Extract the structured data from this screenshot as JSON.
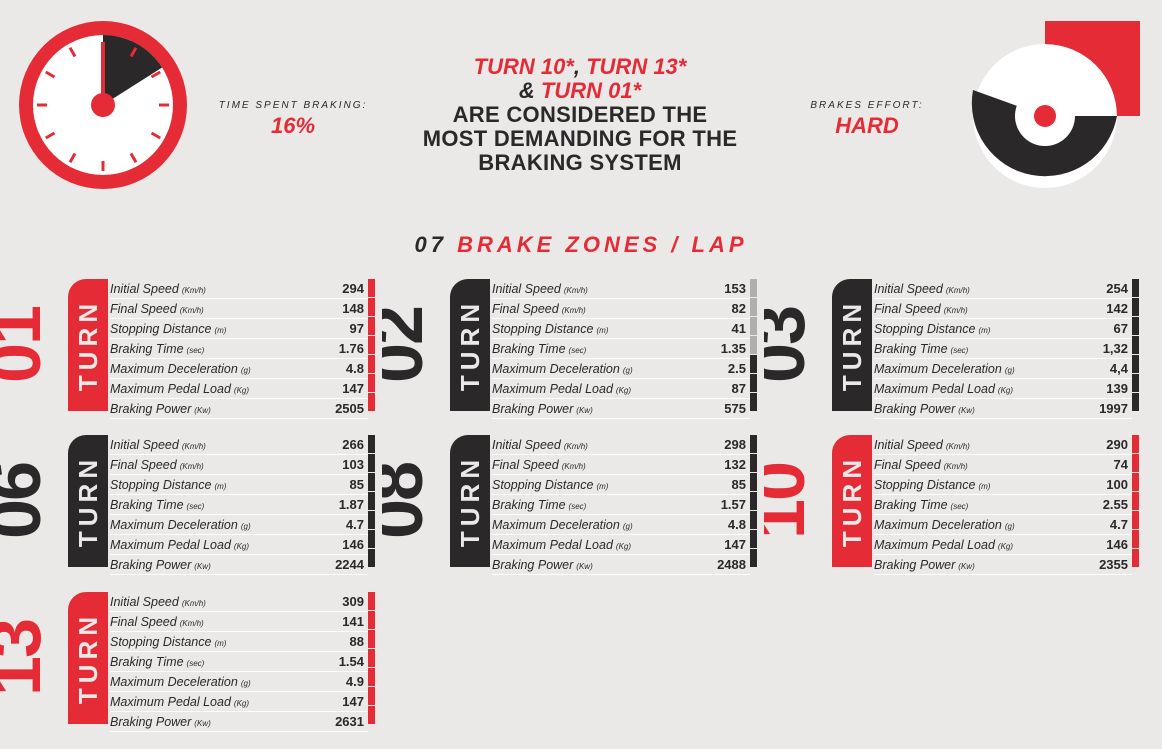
{
  "header": {
    "headline_parts": [
      "TURN 10*",
      ", ",
      "TURN 13*",
      "& ",
      "TURN 01*"
    ],
    "headline_rest": [
      "ARE CONSIDERED THE",
      "MOST DEMANDING FOR THE",
      "BRAKING SYSTEM"
    ]
  },
  "time_braking": {
    "label": "TIME SPENT BRAKING:",
    "value": "16%",
    "fraction": 0.16
  },
  "brakes_effort": {
    "label": "BRAKES EFFORT:",
    "value": "HARD"
  },
  "zones": {
    "count": "07",
    "label": "BRAKE ZONES / LAP"
  },
  "row_labels": [
    {
      "name": "Initial Speed",
      "unit": "(Km/h)"
    },
    {
      "name": "Final Speed",
      "unit": "(Km/h)"
    },
    {
      "name": "Stopping Distance",
      "unit": "(m)"
    },
    {
      "name": "Braking Time",
      "unit": "(sec)"
    },
    {
      "name": "Maximum Deceleration",
      "unit": "(g)"
    },
    {
      "name": "Maximum Pedal Load",
      "unit": "(Kg)"
    },
    {
      "name": "Braking Power",
      "unit": "(Kw)"
    }
  ],
  "turn_word": "TURN",
  "turns": [
    {
      "number": "01",
      "color": "#e52b35",
      "values": [
        "294",
        "148",
        "97",
        "1.76",
        "4.8",
        "147",
        "2505"
      ]
    },
    {
      "number": "02",
      "color": "#2b282a",
      "values": [
        "153",
        "82",
        "41",
        "1.35",
        "2.5",
        "87",
        "575"
      ]
    },
    {
      "number": "03",
      "color": "#2b282a",
      "values": [
        "254",
        "142",
        "67",
        "1,32",
        "4,4",
        "139",
        "1997"
      ]
    },
    {
      "number": "06",
      "color": "#2b282a",
      "values": [
        "266",
        "103",
        "85",
        "1.87",
        "4.7",
        "146",
        "2244"
      ]
    },
    {
      "number": "08",
      "color": "#2b282a",
      "values": [
        "298",
        "132",
        "85",
        "1.57",
        "4.8",
        "147",
        "2488"
      ]
    },
    {
      "number": "10",
      "color": "#e52b35",
      "values": [
        "290",
        "74",
        "100",
        "2.55",
        "4.7",
        "146",
        "2355"
      ]
    },
    {
      "number": "13",
      "color": "#e52b35",
      "values": [
        "309",
        "141",
        "88",
        "1.54",
        "4.9",
        "147",
        "2631"
      ]
    }
  ],
  "colors": {
    "red": "#e52b35",
    "dark": "#2b282a",
    "gray": "#b0aeae",
    "bg": "#ebe8e8"
  }
}
